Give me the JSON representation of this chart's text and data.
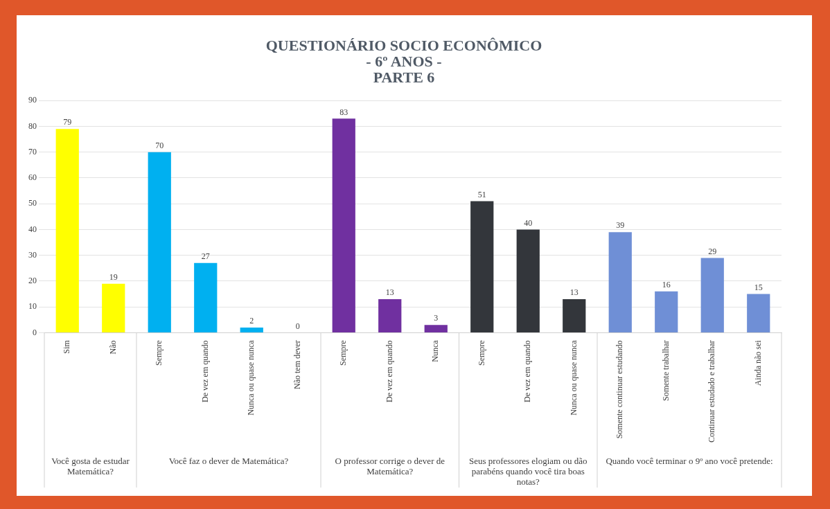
{
  "chart_data": {
    "type": "bar",
    "title": "QUESTIONÁRIO SOCIO ECONÔMICO\n- 6º ANOS -\nPARTE 6",
    "categories": [
      "Sim",
      "Não",
      "Sempre",
      "De vez em quando",
      "Nunca ou quase nunca",
      "Não tem dever",
      "Sempre",
      "De vez em quando",
      "Nunca",
      "Sempre",
      "De vez em quando",
      "Nunca ou quase nunca",
      "Somente continuar estudando",
      "Somente trabalhar",
      "Continuar estudado e trabalhar",
      "Ainda não sei"
    ],
    "values": [
      79,
      19,
      70,
      27,
      2,
      0,
      83,
      13,
      3,
      51,
      40,
      13,
      39,
      16,
      29,
      15
    ],
    "colors": [
      "#ffff00",
      "#ffff00",
      "#00b0f0",
      "#00b0f0",
      "#00b0f0",
      "#00b0f0",
      "#7030a0",
      "#7030a0",
      "#7030a0",
      "#33363b",
      "#33363b",
      "#33363b",
      "#6f8fd6",
      "#6f8fd6",
      "#6f8fd6",
      "#6f8fd6"
    ],
    "annotations": [
      "Você gosta de estudar Matemática?",
      "Você faz o dever de Matemática?",
      "O professor corrige o dever de Matemática?",
      "Seus professores elogiam ou dão parabéns quando você tira boas notas?",
      "Quando você terminar o 9º ano você pretende:"
    ],
    "ylim": [
      0,
      90
    ],
    "yticks": [
      0,
      10,
      20,
      30,
      40,
      50,
      60,
      70,
      80,
      90
    ],
    "grid": "y",
    "data_labels": true,
    "legend": false
  }
}
